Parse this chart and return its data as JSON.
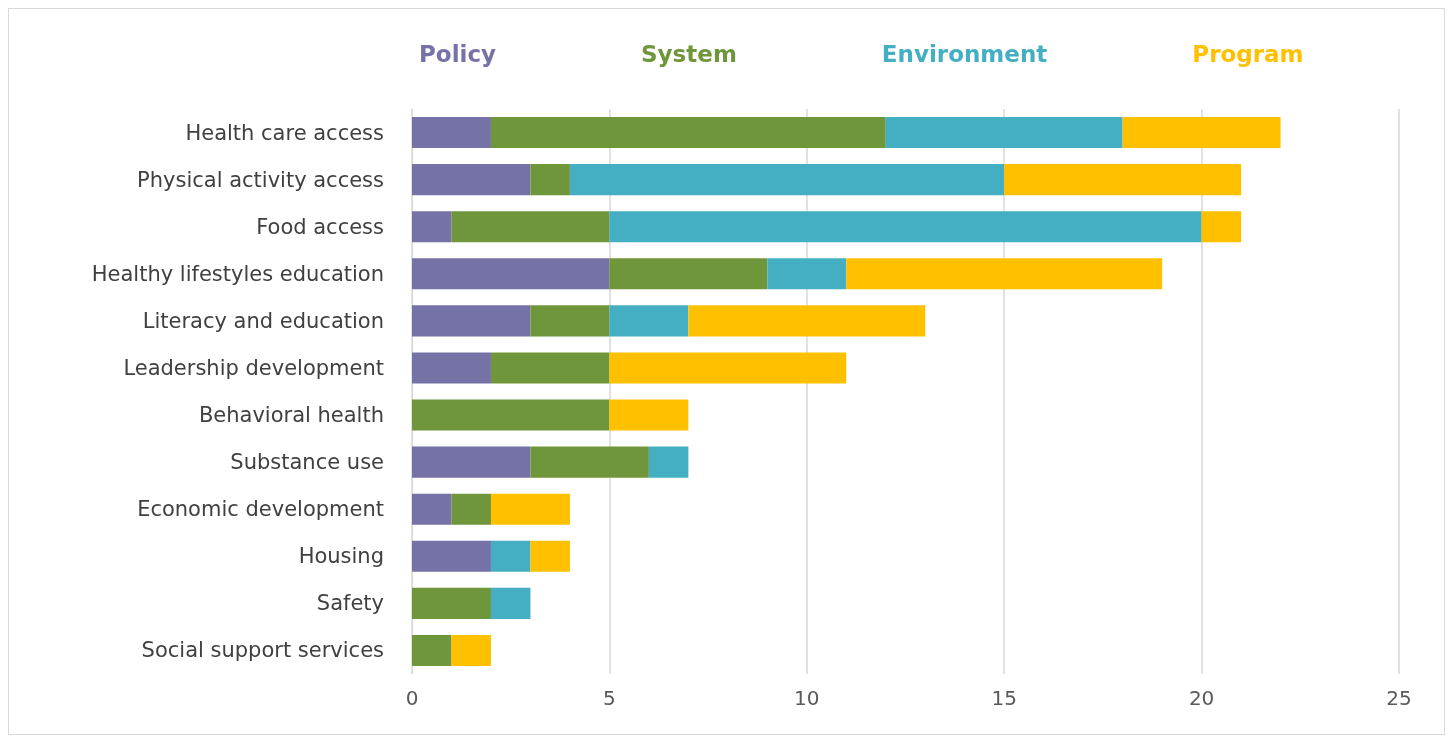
{
  "chart_data": {
    "type": "bar",
    "orientation": "horizontal",
    "stacked": true,
    "categories": [
      "Health care access",
      "Physical activity access",
      "Food access",
      "Healthy lifestyles education",
      "Literacy and education",
      "Leadership development",
      "Behavioral health",
      "Substance use",
      "Economic development",
      "Housing",
      "Safety",
      "Social support services"
    ],
    "series": [
      {
        "name": "Policy",
        "color": "#7472a7",
        "values": [
          2,
          3,
          1,
          5,
          3,
          2,
          0,
          3,
          1,
          2,
          0,
          0
        ]
      },
      {
        "name": "System",
        "color": "#6f963b",
        "values": [
          10,
          1,
          4,
          4,
          2,
          3,
          5,
          3,
          1,
          0,
          2,
          1
        ]
      },
      {
        "name": "Environment",
        "color": "#44afc3",
        "values": [
          6,
          11,
          15,
          2,
          2,
          0,
          0,
          1,
          0,
          1,
          1,
          0
        ]
      },
      {
        "name": "Program",
        "color": "#ffc000",
        "values": [
          4,
          6,
          1,
          8,
          6,
          6,
          2,
          0,
          2,
          1,
          0,
          1
        ]
      }
    ],
    "xlim": [
      0,
      25
    ],
    "xticks": [
      0,
      5,
      10,
      15,
      20,
      25
    ],
    "grid": "x",
    "legend": "top"
  }
}
